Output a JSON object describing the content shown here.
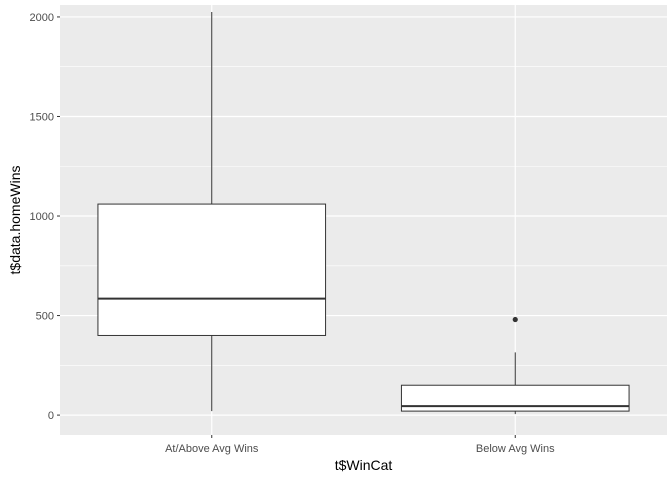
{
  "chart_data": {
    "type": "boxplot",
    "xlabel": "t$WinCat",
    "ylabel": "t$data.homeWins",
    "ylim": [
      -100,
      2060
    ],
    "y_ticks": [
      0,
      500,
      1000,
      1500,
      2000
    ],
    "y_tick_labels": [
      "0",
      "500",
      "1000",
      "1500",
      "2000"
    ],
    "categories": [
      "At/Above Avg Wins",
      "Below Avg Wins"
    ],
    "boxes": [
      {
        "category": "At/Above Avg Wins",
        "whisker_low": 20,
        "q1": 400,
        "median": 585,
        "q3": 1060,
        "whisker_high": 2025,
        "outliers": []
      },
      {
        "category": "Below Avg Wins",
        "whisker_low": 5,
        "q1": 20,
        "median": 45,
        "q3": 150,
        "whisker_high": 315,
        "outliers": [
          480
        ]
      }
    ],
    "grid": true,
    "panel_background": "#ebebeb",
    "grid_color": "#ffffff",
    "box_fill": "#ffffff",
    "box_stroke": "#333333"
  }
}
